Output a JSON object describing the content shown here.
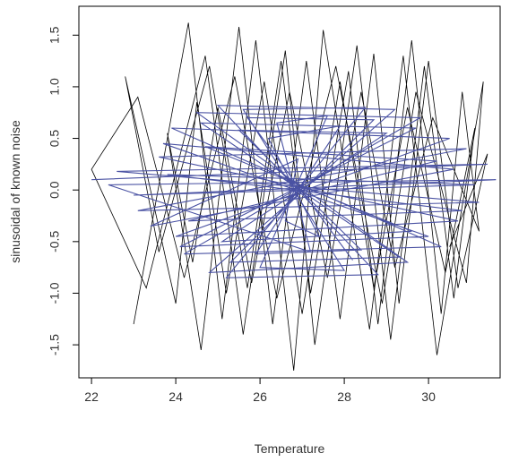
{
  "chart_data": {
    "type": "line",
    "title": "",
    "xlabel": "Temperature",
    "ylabel": "sinusoidal of known noise",
    "xlim": [
      21.7,
      31.7
    ],
    "ylim": [
      -1.82,
      1.78
    ],
    "xticks": [
      22,
      24,
      26,
      28,
      30
    ],
    "yticks": [
      -1.5,
      -1.0,
      -0.5,
      0.0,
      0.5,
      1.0,
      1.5
    ],
    "xtick_labels": [
      "22",
      "24",
      "26",
      "28",
      "30"
    ],
    "ytick_labels": [
      "-1.5",
      "-1.0",
      "-0.5",
      "0.0",
      "0.5",
      "1.0",
      "1.5"
    ],
    "grid": false,
    "legend": "none",
    "series": [
      {
        "color": "#000000",
        "style": "dense zig-zag polyline of noisy observations",
        "points": [
          [
            23.0,
            -1.3
          ],
          [
            24.3,
            1.62
          ],
          [
            25.1,
            -1.25
          ],
          [
            25.9,
            1.45
          ],
          [
            26.8,
            -1.75
          ],
          [
            27.5,
            1.55
          ],
          [
            28.6,
            -1.35
          ],
          [
            29.4,
            1.3
          ],
          [
            30.2,
            -1.6
          ],
          [
            31.3,
            1.05
          ],
          [
            30.9,
            -0.9
          ],
          [
            29.7,
            0.95
          ],
          [
            28.9,
            -1.1
          ],
          [
            27.8,
            1.2
          ],
          [
            26.4,
            -1.05
          ],
          [
            25.4,
            1.1
          ],
          [
            24.2,
            -0.85
          ],
          [
            23.1,
            0.9
          ],
          [
            22.0,
            0.2
          ],
          [
            23.3,
            -0.95
          ],
          [
            24.7,
            1.3
          ],
          [
            25.6,
            -1.4
          ],
          [
            26.6,
            1.35
          ],
          [
            27.3,
            -1.5
          ],
          [
            28.3,
            1.4
          ],
          [
            29.1,
            -1.45
          ],
          [
            29.9,
            1.2
          ],
          [
            30.6,
            -1.05
          ],
          [
            31.1,
            0.6
          ],
          [
            30.4,
            -0.8
          ],
          [
            29.5,
            0.8
          ],
          [
            28.7,
            -0.95
          ],
          [
            27.9,
            1.05
          ],
          [
            27.0,
            -1.2
          ],
          [
            26.1,
            1.05
          ],
          [
            25.2,
            -1.0
          ],
          [
            24.5,
            0.85
          ],
          [
            24.0,
            -1.1
          ],
          [
            22.8,
            1.1
          ],
          [
            23.6,
            -0.6
          ],
          [
            24.8,
            1.2
          ],
          [
            25.7,
            -0.95
          ],
          [
            26.5,
            1.25
          ],
          [
            27.2,
            -1.0
          ],
          [
            28.1,
            1.15
          ],
          [
            28.8,
            -1.3
          ],
          [
            29.6,
            1.45
          ],
          [
            30.3,
            -1.2
          ],
          [
            30.8,
            0.95
          ],
          [
            31.2,
            -0.4
          ],
          [
            30.1,
            0.7
          ],
          [
            29.2,
            -0.75
          ],
          [
            28.4,
            0.95
          ],
          [
            27.6,
            -0.85
          ],
          [
            26.7,
            0.95
          ],
          [
            25.8,
            -0.9
          ],
          [
            25.0,
            0.8
          ],
          [
            24.4,
            -0.7
          ],
          [
            23.8,
            0.55
          ],
          [
            24.6,
            -1.55
          ],
          [
            25.5,
            1.58
          ],
          [
            26.3,
            -1.3
          ],
          [
            27.1,
            1.25
          ],
          [
            27.9,
            -1.25
          ],
          [
            28.7,
            1.32
          ],
          [
            29.3,
            -1.1
          ],
          [
            30.0,
            1.25
          ],
          [
            30.7,
            -0.95
          ],
          [
            31.4,
            0.35
          ],
          [
            30.5,
            -0.55
          ]
        ]
      },
      {
        "color": "#4a52a3",
        "style": "dense blue zig-zag polyline of signal estimates",
        "points": [
          [
            22.0,
            0.1
          ],
          [
            31.4,
            0.25
          ],
          [
            22.6,
            0.18
          ],
          [
            31.2,
            -0.12
          ],
          [
            23.1,
            -0.2
          ],
          [
            30.9,
            0.4
          ],
          [
            23.6,
            0.32
          ],
          [
            30.7,
            -0.3
          ],
          [
            24.0,
            -0.45
          ],
          [
            30.5,
            0.5
          ],
          [
            23.9,
            0.6
          ],
          [
            30.3,
            -0.55
          ],
          [
            24.2,
            -0.62
          ],
          [
            29.8,
            0.7
          ],
          [
            24.5,
            0.75
          ],
          [
            29.5,
            -0.7
          ],
          [
            24.8,
            -0.8
          ],
          [
            29.2,
            0.78
          ],
          [
            25.0,
            0.82
          ],
          [
            28.8,
            -0.82
          ],
          [
            25.2,
            -0.85
          ],
          [
            28.5,
            0.8
          ],
          [
            25.6,
            0.78
          ],
          [
            28.0,
            -0.78
          ],
          [
            26.0,
            -0.75
          ],
          [
            27.6,
            0.72
          ],
          [
            26.4,
            0.65
          ],
          [
            27.2,
            -0.6
          ],
          [
            22.4,
            0.05
          ],
          [
            31.6,
            0.1
          ],
          [
            23.0,
            -0.05
          ],
          [
            31.1,
            0.05
          ],
          [
            23.8,
            0.15
          ],
          [
            30.8,
            -0.2
          ],
          [
            24.3,
            -0.3
          ],
          [
            30.2,
            0.28
          ],
          [
            24.7,
            0.42
          ],
          [
            29.6,
            -0.4
          ],
          [
            25.1,
            -0.5
          ],
          [
            29.0,
            0.55
          ],
          [
            25.5,
            0.58
          ],
          [
            28.4,
            -0.58
          ],
          [
            25.9,
            -0.62
          ],
          [
            27.9,
            0.62
          ],
          [
            26.2,
            0.5
          ],
          [
            27.4,
            -0.45
          ],
          [
            26.6,
            -0.3
          ],
          [
            26.9,
            0.3
          ],
          [
            23.4,
            -0.35
          ],
          [
            30.6,
            0.2
          ],
          [
            23.7,
            0.45
          ],
          [
            30.0,
            -0.45
          ],
          [
            24.1,
            -0.55
          ],
          [
            29.7,
            0.6
          ],
          [
            24.6,
            0.65
          ],
          [
            29.3,
            -0.65
          ],
          [
            25.3,
            -0.7
          ],
          [
            28.7,
            0.68
          ],
          [
            25.7,
            0.7
          ],
          [
            28.2,
            -0.68
          ]
        ]
      }
    ]
  }
}
